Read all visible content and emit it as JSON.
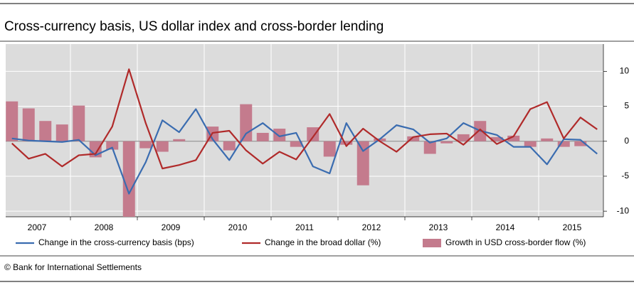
{
  "chart_data": {
    "type": "bar_line",
    "title": "Cross-currency basis, US dollar index and cross-border lending",
    "source": "© Bank for International Settlements",
    "years": [
      "2007",
      "2008",
      "2009",
      "2010",
      "2011",
      "2012",
      "2013",
      "2014",
      "2015"
    ],
    "ylim": [
      -10.8,
      13.9
    ],
    "yticks": [
      10,
      5,
      0,
      -5,
      -10
    ],
    "grid": true,
    "series": [
      {
        "name": "Change in the cross-currency basis (bps)",
        "kind": "line",
        "color": "#3a6cb0",
        "values": [
          0.4,
          0.1,
          0,
          -0.1,
          0.2,
          -2,
          -0.9,
          -7.5,
          -3,
          3,
          1.3,
          4.6,
          0.3,
          -2.7,
          1.1,
          2.6,
          0.7,
          1.2,
          -3.6,
          -4.6,
          2.6,
          -1.4,
          0.3,
          2.3,
          1.7,
          -0.2,
          0.4,
          2.6,
          1.5,
          0.9,
          -0.8,
          -0.8,
          -3.3,
          0.3,
          0.2,
          -1.8
        ]
      },
      {
        "name": "Change in the broad dollar (%)",
        "kind": "line",
        "color": "#b02a2a",
        "values": [
          -0.3,
          -2.5,
          -1.8,
          -3.6,
          -2,
          -1.8,
          2.1,
          10.3,
          2.6,
          -3.9,
          -3.4,
          -2.7,
          1.2,
          1.5,
          -1.3,
          -3.2,
          -1.5,
          -2.6,
          0.6,
          3.9,
          -0.7,
          1.8,
          0,
          -1.5,
          0.6,
          1,
          1.1,
          -0.5,
          1.7,
          -0.4,
          0.7,
          4.6,
          5.6,
          0.4,
          3.4,
          1.7
        ]
      },
      {
        "name": "Growth in USD cross-border flow (%)",
        "kind": "bar",
        "color": "#c47b8d",
        "values": [
          5.7,
          4.7,
          2.9,
          2.4,
          5.1,
          -2.3,
          -1.2,
          -11,
          -1,
          -1.5,
          0.3,
          0,
          2.1,
          -1.3,
          5.3,
          1.2,
          1.8,
          -0.8,
          2,
          -2.2,
          -0.5,
          -6.3,
          0.4,
          0,
          0.7,
          -1.8,
          -0.3,
          1,
          2.9,
          0.6,
          0.8,
          -0.8,
          0.4,
          -0.8,
          -0.7,
          null
        ]
      }
    ]
  }
}
